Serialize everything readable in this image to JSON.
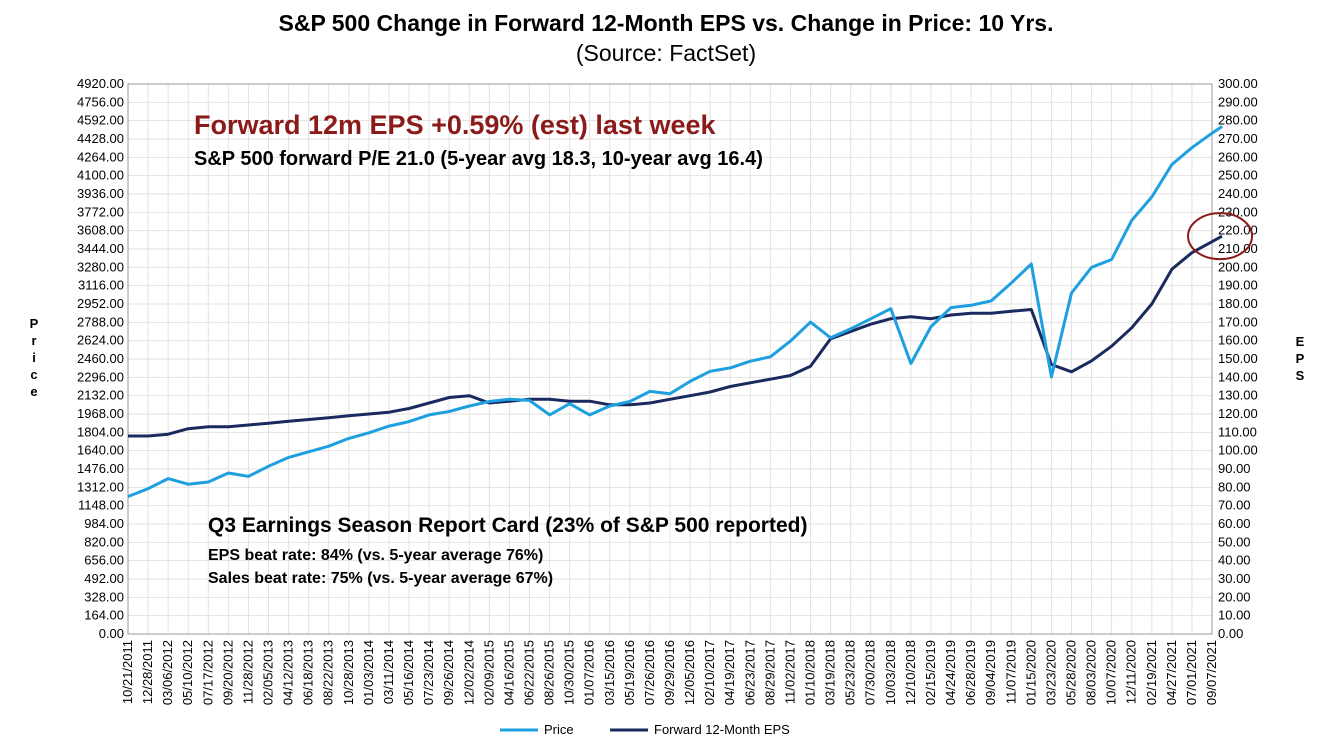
{
  "chart_data": {
    "type": "line",
    "title": "S&P 500 Change in Forward 12-Month EPS vs. Change in Price: 10 Yrs.",
    "subtitle": "(Source: FactSet)",
    "ylabel_left": "Price",
    "ylabel_right": "EPS",
    "ylim_left": [
      0,
      4920
    ],
    "ylim_right": [
      0,
      300
    ],
    "grid": true,
    "legend_position": "bottom",
    "y_ticks_left": [
      "0.00",
      "164.00",
      "328.00",
      "492.00",
      "656.00",
      "820.00",
      "984.00",
      "1148.00",
      "1312.00",
      "1476.00",
      "1640.00",
      "1804.00",
      "1968.00",
      "2132.00",
      "2296.00",
      "2460.00",
      "2624.00",
      "2788.00",
      "2952.00",
      "3116.00",
      "3280.00",
      "3444.00",
      "3608.00",
      "3772.00",
      "3936.00",
      "4100.00",
      "4264.00",
      "4428.00",
      "4592.00",
      "4756.00",
      "4920.00"
    ],
    "y_ticks_right": [
      "0.00",
      "10.00",
      "20.00",
      "30.00",
      "40.00",
      "50.00",
      "60.00",
      "70.00",
      "80.00",
      "90.00",
      "100.00",
      "110.00",
      "120.00",
      "130.00",
      "140.00",
      "150.00",
      "160.00",
      "170.00",
      "180.00",
      "190.00",
      "200.00",
      "210.00",
      "220.00",
      "230.00",
      "240.00",
      "250.00",
      "260.00",
      "270.00",
      "280.00",
      "290.00",
      "300.00"
    ],
    "x_ticks": [
      "10/21/2011",
      "12/28/2011",
      "03/06/2012",
      "05/10/2012",
      "07/17/2012",
      "09/20/2012",
      "11/28/2012",
      "02/05/2013",
      "04/12/2013",
      "06/18/2013",
      "08/22/2013",
      "10/28/2013",
      "01/03/2014",
      "03/11/2014",
      "05/16/2014",
      "07/23/2014",
      "09/26/2014",
      "12/02/2014",
      "02/09/2015",
      "04/16/2015",
      "06/22/2015",
      "08/26/2015",
      "10/30/2015",
      "01/07/2016",
      "03/15/2016",
      "05/19/2016",
      "07/26/2016",
      "09/29/2016",
      "12/05/2016",
      "02/10/2017",
      "04/19/2017",
      "06/23/2017",
      "08/29/2017",
      "11/02/2017",
      "01/10/2018",
      "03/19/2018",
      "05/23/2018",
      "07/30/2018",
      "10/03/2018",
      "12/10/2018",
      "02/15/2019",
      "04/24/2019",
      "06/28/2019",
      "09/04/2019",
      "11/07/2019",
      "01/15/2020",
      "03/23/2020",
      "05/28/2020",
      "08/03/2020",
      "10/07/2020",
      "12/11/2020",
      "02/19/2021",
      "04/27/2021",
      "07/01/2021",
      "09/07/2021"
    ],
    "series": [
      {
        "name": "Price",
        "axis": "left",
        "color": "#1ea0e0",
        "points": [
          [
            0,
            1230
          ],
          [
            1,
            1300
          ],
          [
            2,
            1390
          ],
          [
            3,
            1340
          ],
          [
            4,
            1360
          ],
          [
            5,
            1440
          ],
          [
            6,
            1410
          ],
          [
            7,
            1500
          ],
          [
            8,
            1580
          ],
          [
            9,
            1630
          ],
          [
            10,
            1680
          ],
          [
            11,
            1750
          ],
          [
            12,
            1800
          ],
          [
            13,
            1860
          ],
          [
            14,
            1900
          ],
          [
            15,
            1960
          ],
          [
            16,
            1990
          ],
          [
            17,
            2040
          ],
          [
            18,
            2080
          ],
          [
            19,
            2100
          ],
          [
            20,
            2090
          ],
          [
            21,
            1960
          ],
          [
            22,
            2060
          ],
          [
            23,
            1960
          ],
          [
            24,
            2040
          ],
          [
            25,
            2080
          ],
          [
            26,
            2170
          ],
          [
            27,
            2150
          ],
          [
            28,
            2260
          ],
          [
            29,
            2350
          ],
          [
            30,
            2380
          ],
          [
            31,
            2440
          ],
          [
            32,
            2480
          ],
          [
            33,
            2620
          ],
          [
            34,
            2790
          ],
          [
            35,
            2650
          ],
          [
            36,
            2730
          ],
          [
            37,
            2820
          ],
          [
            38,
            2910
          ],
          [
            39,
            2420
          ],
          [
            40,
            2750
          ],
          [
            41,
            2920
          ],
          [
            42,
            2940
          ],
          [
            43,
            2980
          ],
          [
            44,
            3140
          ],
          [
            45,
            3310
          ],
          [
            46,
            2300
          ],
          [
            47,
            3050
          ],
          [
            48,
            3280
          ],
          [
            49,
            3350
          ],
          [
            50,
            3700
          ],
          [
            51,
            3910
          ],
          [
            52,
            4200
          ],
          [
            53,
            4350
          ],
          [
            54,
            4480
          ],
          [
            54.5,
            4540
          ]
        ]
      },
      {
        "name": "Forward 12-Month EPS",
        "axis": "right",
        "color": "#1a2a5e",
        "points": [
          [
            0,
            108
          ],
          [
            1,
            108
          ],
          [
            2,
            109
          ],
          [
            3,
            112
          ],
          [
            4,
            113
          ],
          [
            5,
            113
          ],
          [
            6,
            114
          ],
          [
            7,
            115
          ],
          [
            8,
            116
          ],
          [
            9,
            117
          ],
          [
            10,
            118
          ],
          [
            11,
            119
          ],
          [
            12,
            120
          ],
          [
            13,
            121
          ],
          [
            14,
            123
          ],
          [
            15,
            126
          ],
          [
            16,
            129
          ],
          [
            17,
            130
          ],
          [
            18,
            126
          ],
          [
            19,
            127
          ],
          [
            20,
            128
          ],
          [
            21,
            128
          ],
          [
            22,
            127
          ],
          [
            23,
            127
          ],
          [
            24,
            125
          ],
          [
            25,
            125
          ],
          [
            26,
            126
          ],
          [
            27,
            128
          ],
          [
            28,
            130
          ],
          [
            29,
            132
          ],
          [
            30,
            135
          ],
          [
            31,
            137
          ],
          [
            32,
            139
          ],
          [
            33,
            141
          ],
          [
            34,
            146
          ],
          [
            35,
            161
          ],
          [
            36,
            165
          ],
          [
            37,
            169
          ],
          [
            38,
            172
          ],
          [
            39,
            173
          ],
          [
            40,
            172
          ],
          [
            41,
            174
          ],
          [
            42,
            175
          ],
          [
            43,
            175
          ],
          [
            44,
            176
          ],
          [
            45,
            177
          ],
          [
            46,
            147
          ],
          [
            47,
            143
          ],
          [
            48,
            149
          ],
          [
            49,
            157
          ],
          [
            50,
            167
          ],
          [
            51,
            180
          ],
          [
            52,
            199
          ],
          [
            53,
            208
          ],
          [
            54,
            214
          ],
          [
            54.5,
            217
          ]
        ]
      }
    ],
    "annotations": [
      "Forward 12m EPS +0.59% (est) last week",
      "S&P 500 forward P/E 21.0 (5-year avg 18.3, 10-year avg 16.4)",
      "Q3 Earnings Season Report Card (23% of S&P 500 reported)",
      "EPS beat rate: 84% (vs. 5-year average 76%)",
      "Sales beat rate: 75% (vs. 5-year average 67%)"
    ],
    "highlight_circle_color": "#8b1a1a"
  }
}
